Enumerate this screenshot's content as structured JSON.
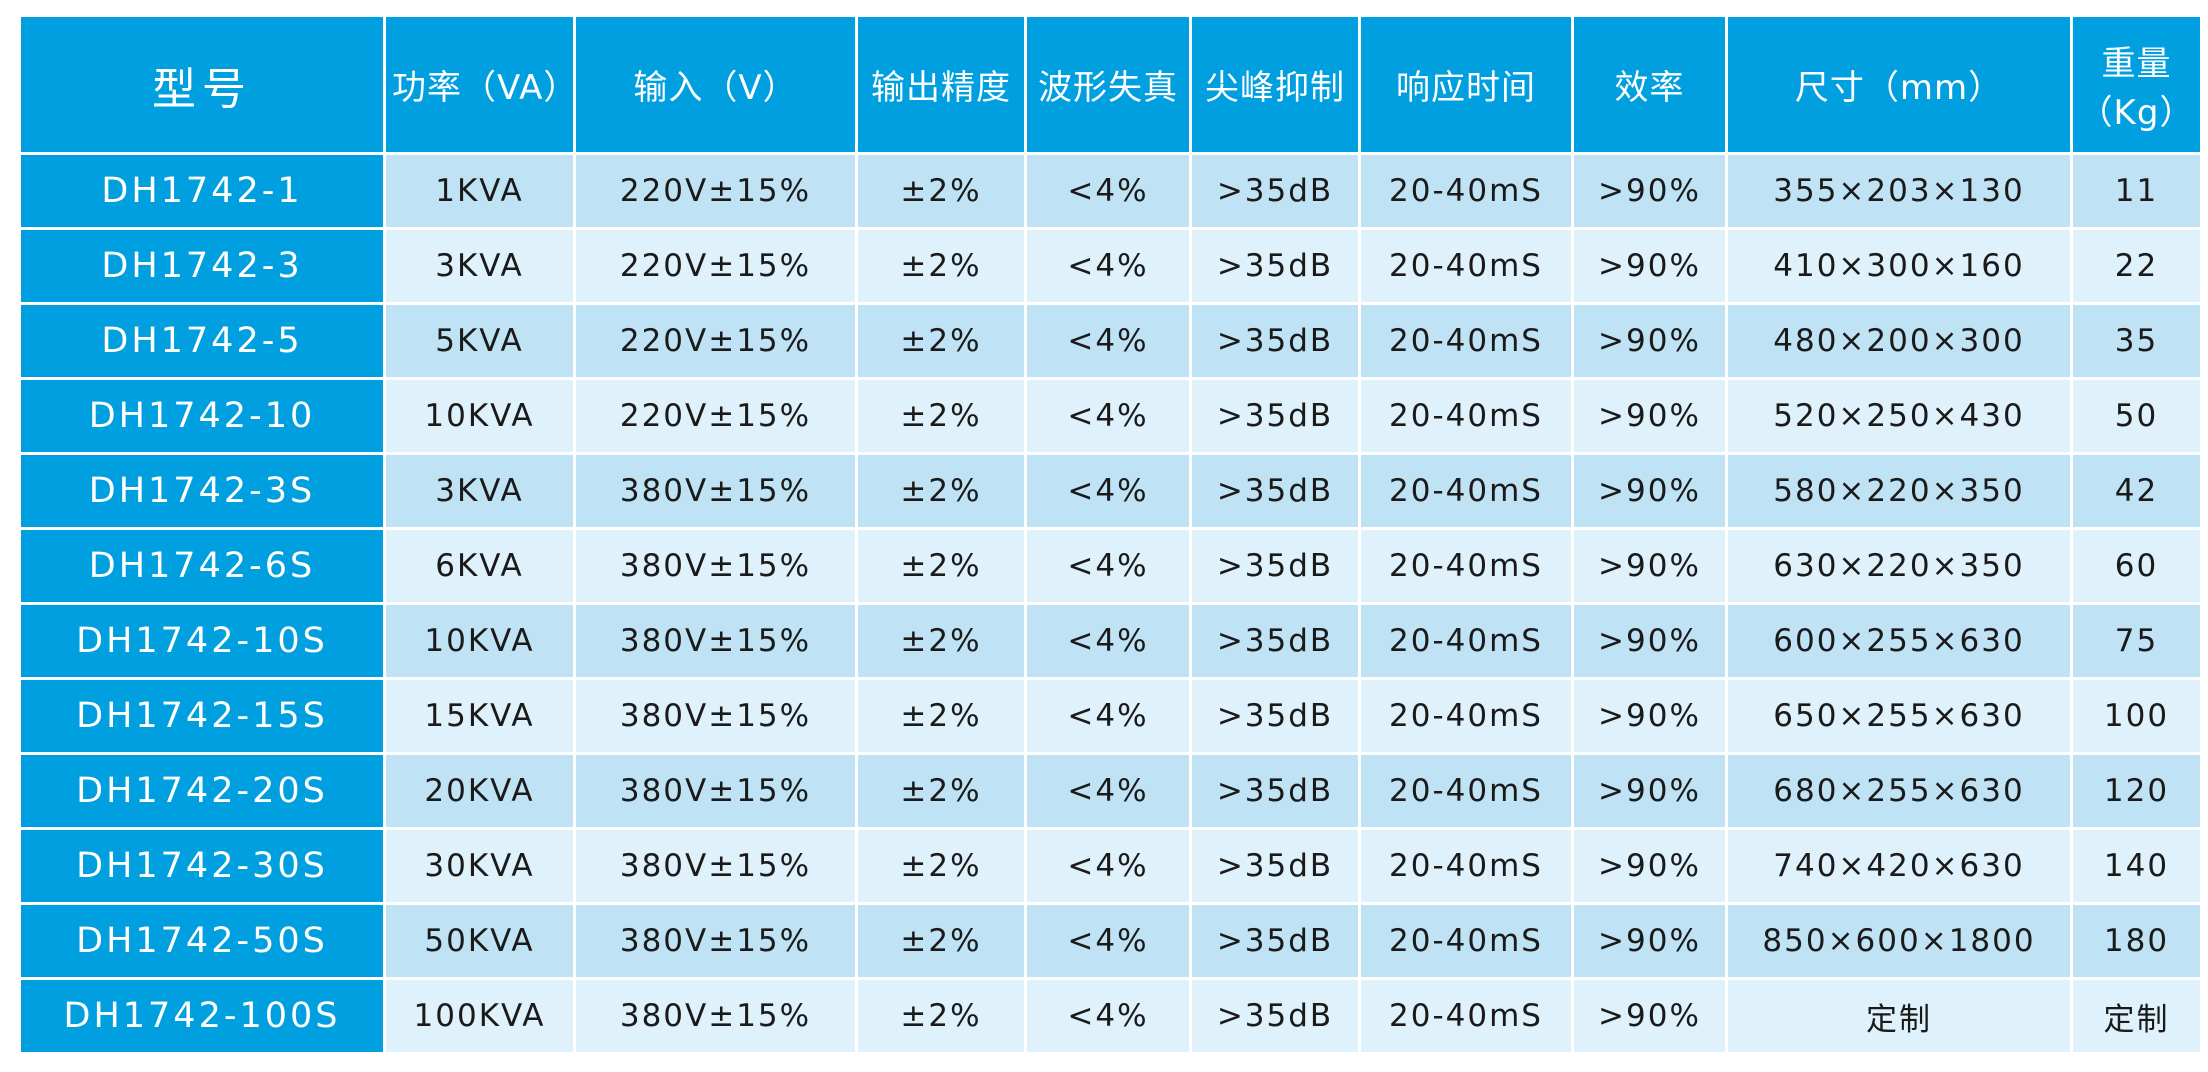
{
  "table": {
    "header": [
      "型号",
      "功率（VA）",
      "输入（V）",
      "输出精度",
      "波形失真",
      "尖峰抑制",
      "响应时间",
      "效率",
      "尺寸（mm）",
      "重量（Kg）"
    ],
    "rows": [
      [
        "DH1742-1",
        "1KVA",
        "220V±15%",
        "±2%",
        "<4%",
        ">35dB",
        "20-40mS",
        ">90%",
        "355×203×130",
        "11"
      ],
      [
        "DH1742-3",
        "3KVA",
        "220V±15%",
        "±2%",
        "<4%",
        ">35dB",
        "20-40mS",
        ">90%",
        "410×300×160",
        "22"
      ],
      [
        "DH1742-5",
        "5KVA",
        "220V±15%",
        "±2%",
        "<4%",
        ">35dB",
        "20-40mS",
        ">90%",
        "480×200×300",
        "35"
      ],
      [
        "DH1742-10",
        "10KVA",
        "220V±15%",
        "±2%",
        "<4%",
        ">35dB",
        "20-40mS",
        ">90%",
        "520×250×430",
        "50"
      ],
      [
        "DH1742-3S",
        "3KVA",
        "380V±15%",
        "±2%",
        "<4%",
        ">35dB",
        "20-40mS",
        ">90%",
        "580×220×350",
        "42"
      ],
      [
        "DH1742-6S",
        "6KVA",
        "380V±15%",
        "±2%",
        "<4%",
        ">35dB",
        "20-40mS",
        ">90%",
        "630×220×350",
        "60"
      ],
      [
        "DH1742-10S",
        "10KVA",
        "380V±15%",
        "±2%",
        "<4%",
        ">35dB",
        "20-40mS",
        ">90%",
        "600×255×630",
        "75"
      ],
      [
        "DH1742-15S",
        "15KVA",
        "380V±15%",
        "±2%",
        "<4%",
        ">35dB",
        "20-40mS",
        ">90%",
        "650×255×630",
        "100"
      ],
      [
        "DH1742-20S",
        "20KVA",
        "380V±15%",
        "±2%",
        "<4%",
        ">35dB",
        "20-40mS",
        ">90%",
        "680×255×630",
        "120"
      ],
      [
        "DH1742-30S",
        "30KVA",
        "380V±15%",
        "±2%",
        "<4%",
        ">35dB",
        "20-40mS",
        ">90%",
        "740×420×630",
        "140"
      ],
      [
        "DH1742-50S",
        "50KVA",
        "380V±15%",
        "±2%",
        "<4%",
        ">35dB",
        "20-40mS",
        ">90%",
        "850×600×1800",
        "180"
      ],
      [
        "DH1742-100S",
        "100KVA",
        "380V±15%",
        "±2%",
        "<4%",
        ">35dB",
        "20-40mS",
        ">90%",
        "定制",
        "定制"
      ]
    ]
  }
}
